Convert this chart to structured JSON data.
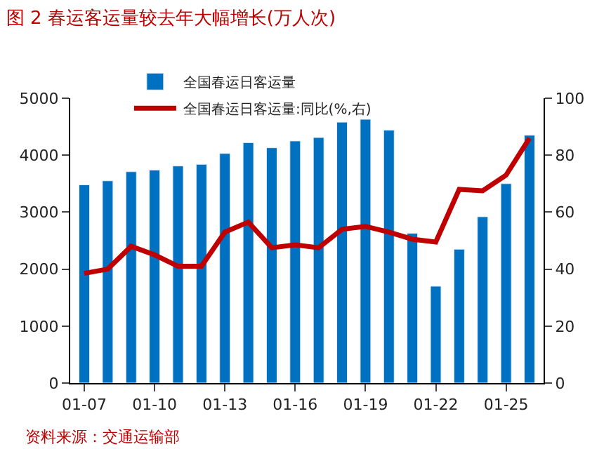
{
  "chart_data": {
    "type": "bar",
    "title": "图 2 春运客运量较去年大幅增长(万人次)",
    "categories": [
      "01-07",
      null,
      null,
      "01-10",
      null,
      null,
      "01-13",
      null,
      null,
      "01-16",
      null,
      null,
      "01-19",
      null,
      null,
      "01-22",
      null,
      null,
      "01-25",
      null
    ],
    "series": [
      {
        "name": "全国春运日客运量",
        "color": "#0070c0",
        "values": [
          3480,
          3550,
          3710,
          3740,
          3810,
          3840,
          4030,
          4220,
          4130,
          4250,
          4310,
          4580,
          4630,
          4440,
          2630,
          1700,
          2350,
          2920,
          3500,
          4350
        ]
      },
      {
        "name": "全国春运日客运量:同比(%,右)",
        "type": "line",
        "axis": "y2",
        "color": "#c00000",
        "values": [
          38.5,
          40,
          48,
          45,
          41,
          41,
          53,
          56.5,
          47.5,
          48.5,
          47.5,
          54,
          55,
          53,
          50.5,
          49.5,
          68,
          67.5,
          73,
          86
        ]
      }
    ],
    "ylim": [
      0,
      5000
    ],
    "yticks": [
      0,
      1000,
      2000,
      3000,
      4000,
      5000
    ],
    "y2lim": [
      0,
      100
    ],
    "y2ticks": [
      0,
      20,
      40,
      60,
      80,
      100
    ],
    "legend": "top",
    "annotations": [
      "资料来源：交通运输部"
    ]
  }
}
